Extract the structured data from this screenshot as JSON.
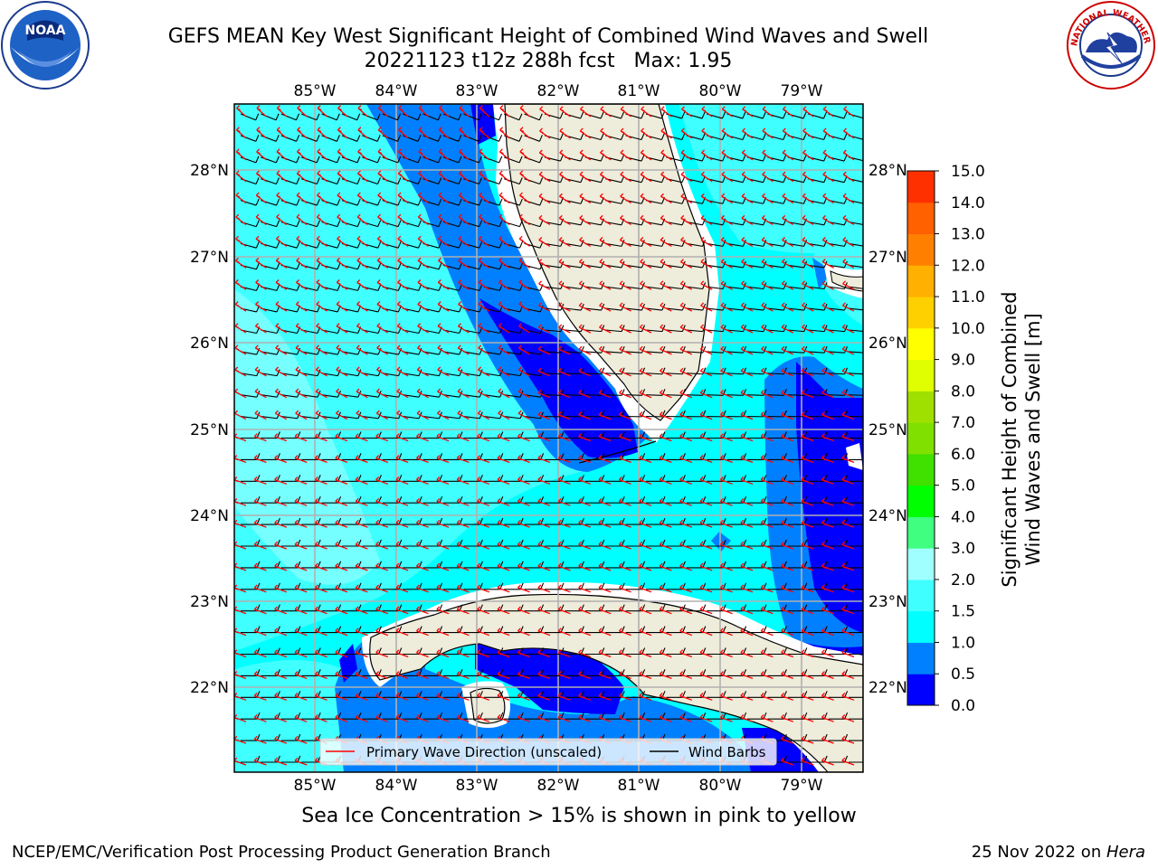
{
  "header": {
    "title_line1": "GEFS MEAN Key West Significant Height of Combined Wind Waves and Swell",
    "title_line2": "20221123 t12z 288h fcst   Max: 1.95"
  },
  "logos": {
    "left": "noaa-logo",
    "right": "nws-logo",
    "left_text": "NOAA",
    "right_text": "NATIONAL WEATHER SERVICE"
  },
  "map": {
    "lon_labels": [
      "85°W",
      "84°W",
      "83°W",
      "82°W",
      "81°W",
      "80°W",
      "79°W"
    ],
    "lat_labels": [
      "28°N",
      "27°N",
      "26°N",
      "25°N",
      "24°N",
      "23°N",
      "22°N"
    ],
    "legend": {
      "wave_label": "Primary Wave Direction (unscaled)",
      "barb_label": "Wind Barbs"
    },
    "colors": {
      "land": "#eeecda",
      "wave_arrow": "#ff0000",
      "barb": "#000000"
    }
  },
  "colorbar": {
    "label_line1": "Significant Height of Combined",
    "label_line2": "Wind Waves and Swell [m]",
    "ticks": [
      "0.0",
      "0.5",
      "1.0",
      "1.5",
      "2.0",
      "3.0",
      "4.0",
      "5.0",
      "6.0",
      "7.0",
      "8.0",
      "9.0",
      "10.0",
      "11.0",
      "12.0",
      "13.0",
      "14.0",
      "15.0"
    ],
    "colors": [
      "#0000ff",
      "#0080ff",
      "#00ffff",
      "#40ffff",
      "#a0ffff",
      "#40ff80",
      "#00ff00",
      "#40e000",
      "#80e000",
      "#a0e000",
      "#e0ff00",
      "#ffff00",
      "#ffd000",
      "#ffb000",
      "#ff8000",
      "#ff6000",
      "#ff3000",
      "#ff0000"
    ]
  },
  "caption": "Sea Ice Concentration > 15% is shown in pink to yellow",
  "footer": {
    "left": "NCEP/EMC/Verification Post Processing Product Generation Branch",
    "right_date": "25 Nov 2022 on ",
    "right_host": "Hera"
  }
}
